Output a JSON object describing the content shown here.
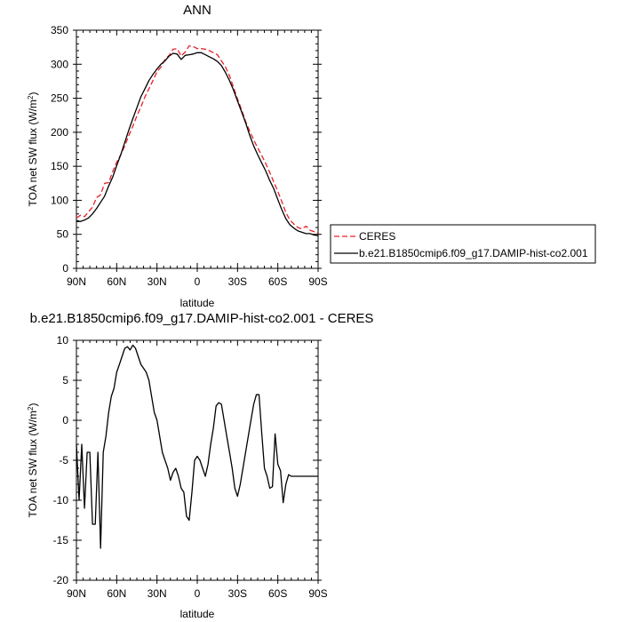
{
  "chart_data": [
    {
      "type": "line",
      "title": "ANN",
      "xlabel": "latitude",
      "ylabel": "TOA net SW flux (W/m²)",
      "xlim": [
        90,
        -90
      ],
      "ylim": [
        0,
        350
      ],
      "xticks": [
        90,
        60,
        30,
        0,
        -30,
        -60,
        -90
      ],
      "xtick_labels": [
        "90N",
        "60N",
        "30N",
        "0",
        "30S",
        "60S",
        "90S"
      ],
      "yticks": [
        0,
        50,
        100,
        150,
        200,
        250,
        300,
        350
      ],
      "grid": false,
      "legend_position": "right-outside",
      "series": [
        {
          "name": "CERES",
          "color": "#e8202a",
          "dash": "dashed",
          "x": [
            90,
            87,
            84,
            81,
            78,
            75,
            72,
            69,
            66,
            63,
            60,
            57,
            54,
            51,
            48,
            45,
            42,
            39,
            36,
            33,
            30,
            27,
            24,
            21,
            18,
            15,
            12,
            9,
            6,
            3,
            0,
            -3,
            -6,
            -9,
            -12,
            -15,
            -18,
            -21,
            -24,
            -27,
            -30,
            -33,
            -36,
            -39,
            -42,
            -45,
            -48,
            -51,
            -54,
            -57,
            -60,
            -63,
            -66,
            -69,
            -72,
            -75,
            -78,
            -81,
            -84,
            -87,
            -90
          ],
          "y": [
            74,
            78,
            76,
            83,
            90,
            104,
            108,
            125,
            126,
            142,
            156,
            167,
            180,
            195,
            209,
            224,
            237,
            252,
            264,
            276,
            289,
            296,
            307,
            313,
            322,
            323,
            312,
            318,
            327,
            326,
            323,
            323,
            322,
            320,
            317,
            314,
            305,
            296,
            283,
            266,
            249,
            233,
            216,
            202,
            189,
            177,
            166,
            154,
            141,
            127,
            113,
            98,
            82,
            71,
            65,
            60,
            58,
            62,
            56,
            54,
            52
          ]
        },
        {
          "name": "b.e21.B1850cmip6.f09_g17.DAMIP-hist-co2.001",
          "color": "#000000",
          "dash": "solid",
          "x": [
            90,
            87,
            84,
            81,
            78,
            75,
            72,
            69,
            66,
            63,
            60,
            57,
            54,
            51,
            48,
            45,
            42,
            39,
            36,
            33,
            30,
            27,
            24,
            21,
            18,
            15,
            12,
            9,
            6,
            3,
            0,
            -3,
            -6,
            -9,
            -12,
            -15,
            -18,
            -21,
            -24,
            -27,
            -30,
            -33,
            -36,
            -39,
            -42,
            -45,
            -48,
            -51,
            -54,
            -57,
            -60,
            -63,
            -66,
            -69,
            -72,
            -75,
            -78,
            -81,
            -84,
            -87,
            -90
          ],
          "y": [
            69,
            69,
            71,
            74,
            80,
            88,
            97,
            106,
            121,
            134,
            151,
            167,
            185,
            203,
            220,
            236,
            252,
            264,
            276,
            285,
            293,
            300,
            305,
            312,
            316,
            315,
            307,
            313,
            314,
            315,
            317,
            317,
            314,
            311,
            308,
            304,
            298,
            288,
            276,
            262,
            246,
            230,
            214,
            196,
            180,
            167,
            155,
            143,
            129,
            117,
            101,
            86,
            73,
            64,
            59,
            55,
            53,
            51,
            51,
            49,
            48
          ]
        }
      ]
    },
    {
      "type": "line",
      "title": "b.e21.B1850cmip6.f09_g17.DAMIP-hist-co2.001 - CERES",
      "xlabel": "latitude",
      "ylabel": "TOA net SW flux (W/m²)",
      "xlim": [
        90,
        -90
      ],
      "ylim": [
        -20,
        10
      ],
      "xticks": [
        90,
        60,
        30,
        0,
        -30,
        -60,
        -90
      ],
      "xtick_labels": [
        "90N",
        "60N",
        "30N",
        "0",
        "30S",
        "60S",
        "90S"
      ],
      "yticks": [
        -20,
        -15,
        -10,
        -5,
        0,
        5,
        10
      ],
      "grid": false,
      "series": [
        {
          "color": "#000000",
          "dash": "solid",
          "x": [
            90,
            88,
            86,
            84,
            82,
            80,
            78,
            76,
            74,
            72,
            70,
            68,
            66,
            64,
            62,
            60,
            58,
            56,
            54,
            52,
            50,
            48,
            46,
            44,
            42,
            40,
            38,
            36,
            34,
            32,
            30,
            28,
            26,
            24,
            22,
            20,
            18,
            16,
            14,
            12,
            10,
            8,
            6,
            4,
            2,
            0,
            -2,
            -4,
            -6,
            -8,
            -10,
            -12,
            -14,
            -16,
            -18,
            -20,
            -22,
            -24,
            -26,
            -28,
            -30,
            -32,
            -34,
            -36,
            -38,
            -40,
            -42,
            -44,
            -46,
            -48,
            -50,
            -52,
            -54,
            -56,
            -58,
            -60,
            -62,
            -64,
            -66,
            -68,
            -70,
            -72,
            -74,
            -76,
            -78,
            -80,
            -82,
            -84,
            -86,
            -88,
            -90
          ],
          "y": [
            -3,
            -10,
            -3,
            -11,
            -4,
            -4,
            -13,
            -13,
            -4,
            -16,
            -4,
            -2,
            1,
            3,
            4,
            6,
            7,
            8,
            9,
            9.2,
            8.8,
            9.4,
            9,
            8,
            7,
            6.5,
            6,
            5,
            3,
            1,
            0,
            -2,
            -4,
            -5,
            -6,
            -7.5,
            -6.5,
            -6,
            -7,
            -8.5,
            -9,
            -12,
            -12.5,
            -9,
            -5,
            -4.5,
            -5,
            -6,
            -7,
            -5.5,
            -3,
            -1,
            1.8,
            2.2,
            2,
            0,
            -2,
            -4,
            -6,
            -8.5,
            -9.5,
            -8,
            -6,
            -4,
            -2,
            0,
            2,
            3.2,
            3.2,
            -1.5,
            -6,
            -7,
            -8.5,
            -8.3,
            -1.7,
            -5.5,
            -6.3,
            -10.3,
            -8,
            -6.8,
            -7,
            -7,
            -7,
            -7,
            -7,
            -7,
            -7,
            -7,
            -7,
            -7,
            -7
          ]
        }
      ]
    }
  ]
}
